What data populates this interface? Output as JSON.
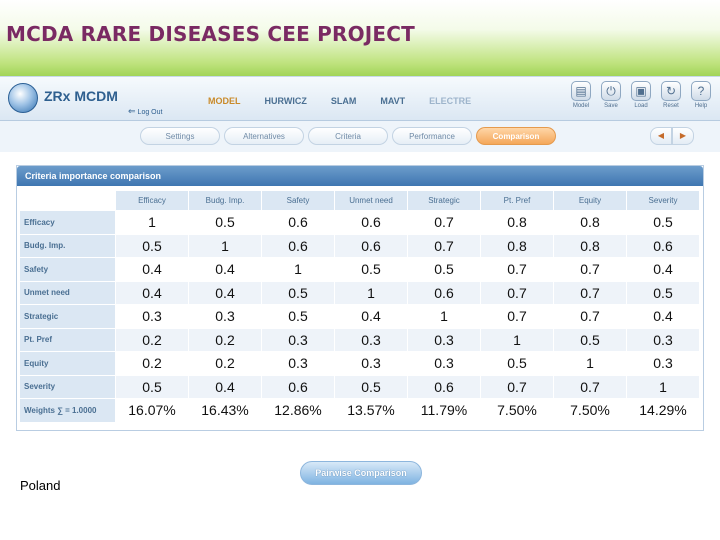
{
  "banner": {
    "title": "MCDA RARE DISEASES CEE PROJECT"
  },
  "header": {
    "logo_text": "ZRx MCDM",
    "logout_label": "Log Out",
    "main_tabs": [
      "MODEL",
      "HURWICZ",
      "SLAM",
      "MAVT",
      "ELECTRE"
    ],
    "tools": [
      {
        "label": "Model",
        "icon": "model-icon"
      },
      {
        "label": "Save",
        "icon": "save-icon"
      },
      {
        "label": "Load",
        "icon": "load-icon"
      },
      {
        "label": "Reset",
        "icon": "reset-icon"
      },
      {
        "label": "Help",
        "icon": "help-icon"
      }
    ]
  },
  "sub_tabs": [
    "Settings",
    "Alternatives",
    "Criteria",
    "Performance",
    "Comparison"
  ],
  "active_sub_tab": "Comparison",
  "panel": {
    "title": "Criteria importance comparison",
    "columns": [
      "Efficacy",
      "Budg. Imp.",
      "Safety",
      "Unmet need",
      "Strategic",
      "Pt. Pref",
      "Equity",
      "Severity"
    ],
    "rows": [
      {
        "label": "Efficacy",
        "values": [
          "1",
          "0.5",
          "0.6",
          "0.6",
          "0.7",
          "0.8",
          "0.8",
          "0.5"
        ]
      },
      {
        "label": "Budg. Imp.",
        "values": [
          "0.5",
          "1",
          "0.6",
          "0.6",
          "0.7",
          "0.8",
          "0.8",
          "0.6"
        ]
      },
      {
        "label": "Safety",
        "values": [
          "0.4",
          "0.4",
          "1",
          "0.5",
          "0.5",
          "0.7",
          "0.7",
          "0.4"
        ]
      },
      {
        "label": "Unmet need",
        "values": [
          "0.4",
          "0.4",
          "0.5",
          "1",
          "0.6",
          "0.7",
          "0.7",
          "0.5"
        ]
      },
      {
        "label": "Strategic",
        "values": [
          "0.3",
          "0.3",
          "0.5",
          "0.4",
          "1",
          "0.7",
          "0.7",
          "0.4"
        ]
      },
      {
        "label": "Pt. Pref",
        "values": [
          "0.2",
          "0.2",
          "0.3",
          "0.3",
          "0.3",
          "1",
          "0.5",
          "0.3"
        ]
      },
      {
        "label": "Equity",
        "values": [
          "0.2",
          "0.2",
          "0.3",
          "0.3",
          "0.3",
          "0.5",
          "1",
          "0.3"
        ]
      },
      {
        "label": "Severity",
        "values": [
          "0.5",
          "0.4",
          "0.6",
          "0.5",
          "0.6",
          "0.7",
          "0.7",
          "1"
        ]
      }
    ],
    "weights": {
      "label": "Weights ∑ = 1.0000",
      "values": [
        "16.07%",
        "16.43%",
        "12.86%",
        "13.57%",
        "11.79%",
        "7.50%",
        "7.50%",
        "14.29%"
      ]
    }
  },
  "pairwise_button": "Pairwise Comparison",
  "country": "Poland",
  "colors": {
    "banner_title": "#7a2a63",
    "banner_green": "#8fcb3f",
    "accent_orange": "#f4a75a",
    "header_blue": "#3f76b1"
  }
}
